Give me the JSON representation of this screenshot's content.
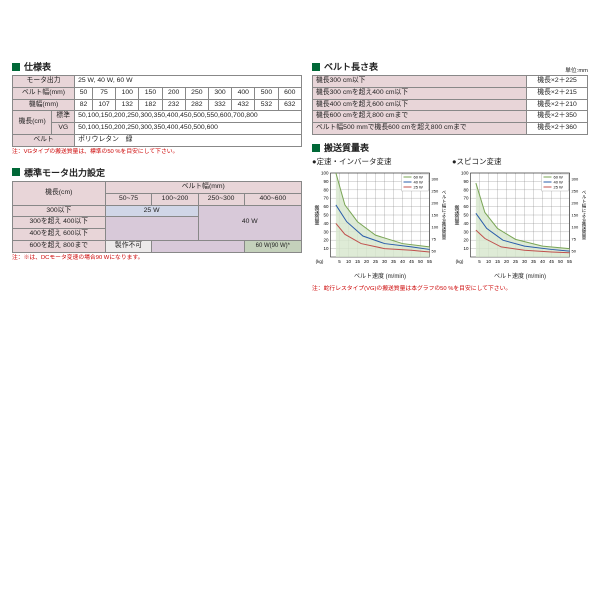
{
  "section_spec": "仕様表",
  "spec_table": {
    "rows": [
      {
        "head": "モータ出力",
        "cells": [
          "25 W, 40 W, 60 W"
        ],
        "span": 11
      },
      {
        "head": "ベルト幅(mm)",
        "cells": [
          "50",
          "75",
          "100",
          "150",
          "200",
          "250",
          "300",
          "400",
          "500",
          "600"
        ]
      },
      {
        "head": "機幅(mm)",
        "cells": [
          "82",
          "107",
          "132",
          "182",
          "232",
          "282",
          "332",
          "432",
          "532",
          "632"
        ]
      },
      {
        "head_rowspan": "機長(cm)",
        "sub": "標準",
        "cells": [
          "50,100,150,200,250,300,350,400,450,500,550,600,700,800"
        ],
        "span": 10
      },
      {
        "sub": "VG",
        "cells": [
          "50,100,150,200,250,300,350,400,450,500,600"
        ],
        "span": 10
      },
      {
        "head": "ベルト",
        "cells": [
          "ポリウレタン　緑"
        ],
        "span": 11
      }
    ]
  },
  "spec_note": "注：VGタイプの搬送質量は、標準の50 %を目安にして下さい。",
  "section_motor": "標準モータ出力設定",
  "motor_table": {
    "col_head": "機長(cm)",
    "belt_head": "ベルト幅(mm)",
    "widths": [
      "50~75",
      "100~200",
      "250~300",
      "400~600"
    ],
    "row1": {
      "head": "300以下",
      "val": "25 W"
    },
    "row2": {
      "head": "300を超え 400以下"
    },
    "row3": {
      "head": "400を超え 600以下",
      "val": "40 W"
    },
    "row4": {
      "head": "600を超え 800まで",
      "no": "製作不可",
      "val60": "60 W(90 W)*"
    }
  },
  "motor_note": "注：※は、DCモータ変速の場合90 Wになります。",
  "section_belt": "ベルト長さ表",
  "unit_label": "単位:mm",
  "belt_rows": [
    {
      "h": "機長300 cm以下",
      "v": "機長×2＋225"
    },
    {
      "h": "機長300 cmを超え400 cm以下",
      "v": "機長×2＋215"
    },
    {
      "h": "機長400 cmを超え600 cm以下",
      "v": "機長×2＋210"
    },
    {
      "h": "機長600 cmを超え800 cmまで",
      "v": "機長×2＋350"
    },
    {
      "h": "ベルト幅500 mmで機長600 cmを超え800 cmまで",
      "v": "機長×2＋360"
    }
  ],
  "section_transport": "搬送質量表",
  "chart1_title": "●定速・インバータ変速",
  "chart2_title": "●スピコン変速",
  "chart_ylabel": "搬送質量",
  "chart_yunit": "(kg)",
  "chart_xlabel": "ベルト速度 (m/min)",
  "chart_y2label": "ベルト幅による搬送質量",
  "chart_y2unit": "(mm)",
  "legend": [
    {
      "label": "60 W",
      "color": "#7aa556"
    },
    {
      "label": "40 W",
      "color": "#2a5caa"
    },
    {
      "label": "25 W",
      "color": "#c0504d"
    }
  ],
  "chart_config": {
    "colors": {
      "grid": "#888",
      "fill": "#d6e6cc"
    },
    "xmax": 55,
    "ymax": 100,
    "xticks": [
      5,
      10,
      15,
      20,
      25,
      30,
      35,
      40,
      45,
      50,
      55
    ],
    "yticks": [
      10,
      20,
      30,
      40,
      50,
      60,
      70,
      80,
      90,
      100
    ],
    "y2ticks": [
      50,
      75,
      100,
      150,
      200,
      250,
      300
    ],
    "chart1_curves": {
      "60W": [
        [
          3,
          100
        ],
        [
          8,
          62
        ],
        [
          15,
          42
        ],
        [
          25,
          26
        ],
        [
          40,
          16
        ],
        [
          55,
          12
        ]
      ],
      "40W": [
        [
          3,
          62
        ],
        [
          9,
          42
        ],
        [
          18,
          25
        ],
        [
          30,
          16
        ],
        [
          45,
          12
        ],
        [
          55,
          9
        ]
      ],
      "25W": [
        [
          3,
          40
        ],
        [
          8,
          27
        ],
        [
          17,
          16
        ],
        [
          30,
          10
        ],
        [
          45,
          8
        ],
        [
          55,
          6
        ]
      ]
    },
    "chart2_curves": {
      "60W": [
        [
          3,
          88
        ],
        [
          8,
          53
        ],
        [
          15,
          34
        ],
        [
          25,
          21
        ],
        [
          40,
          13
        ],
        [
          55,
          10
        ]
      ],
      "40W": [
        [
          3,
          52
        ],
        [
          9,
          34
        ],
        [
          18,
          20
        ],
        [
          30,
          13
        ],
        [
          45,
          9
        ],
        [
          55,
          7
        ]
      ],
      "25W": [
        [
          3,
          32
        ],
        [
          8,
          22
        ],
        [
          17,
          12
        ],
        [
          30,
          8
        ],
        [
          45,
          6
        ],
        [
          55,
          5
        ]
      ]
    }
  },
  "transport_note": "注：蛇行レスタイプ(VG)の搬送質量は本グラフの50 %を目安にして下さい。"
}
